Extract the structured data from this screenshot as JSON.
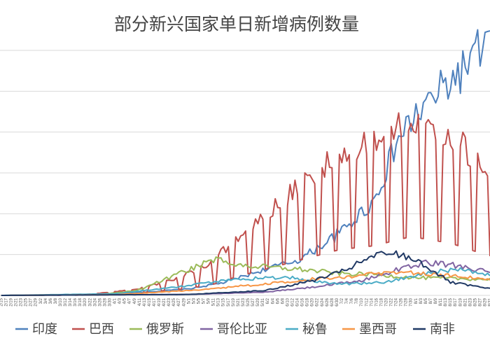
{
  "chart_data": {
    "type": "line",
    "title": "部分新兴国家单日新增病例数量",
    "xlabel": "",
    "ylabel": "",
    "date_range": [
      "2020-02-15",
      "2020-08-31"
    ],
    "x_tick_step_days": 2,
    "ylim": [
      0,
      75000
    ],
    "y_gridlines": [
      0,
      12500,
      25000,
      37500,
      50000,
      62500,
      75000
    ],
    "legend_position": "bottom",
    "series": [
      {
        "name": "印度",
        "color": "#4f81bd",
        "anchors": [
          [
            "2020-02-15",
            0
          ],
          [
            "2020-03-25",
            300
          ],
          [
            "2020-04-15",
            1100
          ],
          [
            "2020-05-01",
            2000
          ],
          [
            "2020-05-15",
            3900
          ],
          [
            "2020-06-01",
            8000
          ],
          [
            "2020-06-15",
            11000
          ],
          [
            "2020-07-01",
            19000
          ],
          [
            "2020-07-15",
            29000
          ],
          [
            "2020-07-25",
            48000
          ],
          [
            "2020-08-01",
            55000
          ],
          [
            "2020-08-10",
            62000
          ],
          [
            "2020-08-20",
            69000
          ],
          [
            "2020-08-28",
            76000
          ],
          [
            "2020-08-31",
            78000
          ]
        ]
      },
      {
        "name": "巴西",
        "color": "#c0504d",
        "anchors": [
          [
            "2020-02-15",
            0
          ],
          [
            "2020-03-20",
            200
          ],
          [
            "2020-04-10",
            1500
          ],
          [
            "2020-04-25",
            4000
          ],
          [
            "2020-05-10",
            8000
          ],
          [
            "2020-05-20",
            14000
          ],
          [
            "2020-06-01",
            20000
          ],
          [
            "2020-06-15",
            27000
          ],
          [
            "2020-07-01",
            35000
          ],
          [
            "2020-07-15",
            38000
          ],
          [
            "2020-07-30",
            45000
          ],
          [
            "2020-08-15",
            40000
          ],
          [
            "2020-08-31",
            30000
          ]
        ],
        "weekly_swing": 0.6
      },
      {
        "name": "俄罗斯",
        "color": "#9bbb59",
        "anchors": [
          [
            "2020-02-15",
            0
          ],
          [
            "2020-03-25",
            200
          ],
          [
            "2020-04-10",
            1500
          ],
          [
            "2020-04-25",
            6000
          ],
          [
            "2020-05-11",
            11000
          ],
          [
            "2020-05-25",
            9000
          ],
          [
            "2020-06-15",
            8000
          ],
          [
            "2020-07-01",
            6700
          ],
          [
            "2020-07-15",
            6400
          ],
          [
            "2020-08-01",
            5400
          ],
          [
            "2020-08-31",
            4900
          ]
        ]
      },
      {
        "name": "哥伦比亚",
        "color": "#8064a2",
        "anchors": [
          [
            "2020-02-15",
            0
          ],
          [
            "2020-05-01",
            300
          ],
          [
            "2020-06-01",
            1000
          ],
          [
            "2020-06-20",
            2500
          ],
          [
            "2020-07-10",
            4500
          ],
          [
            "2020-07-25",
            8000
          ],
          [
            "2020-08-05",
            10000
          ],
          [
            "2020-08-20",
            9000
          ],
          [
            "2020-08-31",
            7000
          ]
        ]
      },
      {
        "name": "秘鲁",
        "color": "#4bacc6",
        "anchors": [
          [
            "2020-02-15",
            0
          ],
          [
            "2020-04-01",
            500
          ],
          [
            "2020-05-01",
            3000
          ],
          [
            "2020-05-20",
            5000
          ],
          [
            "2020-06-10",
            5500
          ],
          [
            "2020-07-01",
            3500
          ],
          [
            "2020-07-20",
            4000
          ],
          [
            "2020-08-05",
            7000
          ],
          [
            "2020-08-20",
            8000
          ],
          [
            "2020-08-31",
            6500
          ]
        ]
      },
      {
        "name": "墨西哥",
        "color": "#f79646",
        "anchors": [
          [
            "2020-02-15",
            0
          ],
          [
            "2020-04-01",
            200
          ],
          [
            "2020-05-01",
            1500
          ],
          [
            "2020-06-01",
            3500
          ],
          [
            "2020-06-20",
            5000
          ],
          [
            "2020-07-15",
            6500
          ],
          [
            "2020-08-01",
            7000
          ],
          [
            "2020-08-15",
            6000
          ],
          [
            "2020-08-31",
            5000
          ]
        ]
      },
      {
        "name": "南非",
        "color": "#1f3864",
        "anchors": [
          [
            "2020-02-15",
            0
          ],
          [
            "2020-05-01",
            300
          ],
          [
            "2020-06-01",
            1500
          ],
          [
            "2020-06-20",
            4500
          ],
          [
            "2020-07-01",
            7000
          ],
          [
            "2020-07-15",
            12000
          ],
          [
            "2020-07-22",
            13000
          ],
          [
            "2020-08-01",
            11000
          ],
          [
            "2020-08-15",
            4000
          ],
          [
            "2020-08-31",
            2000
          ]
        ]
      }
    ]
  }
}
